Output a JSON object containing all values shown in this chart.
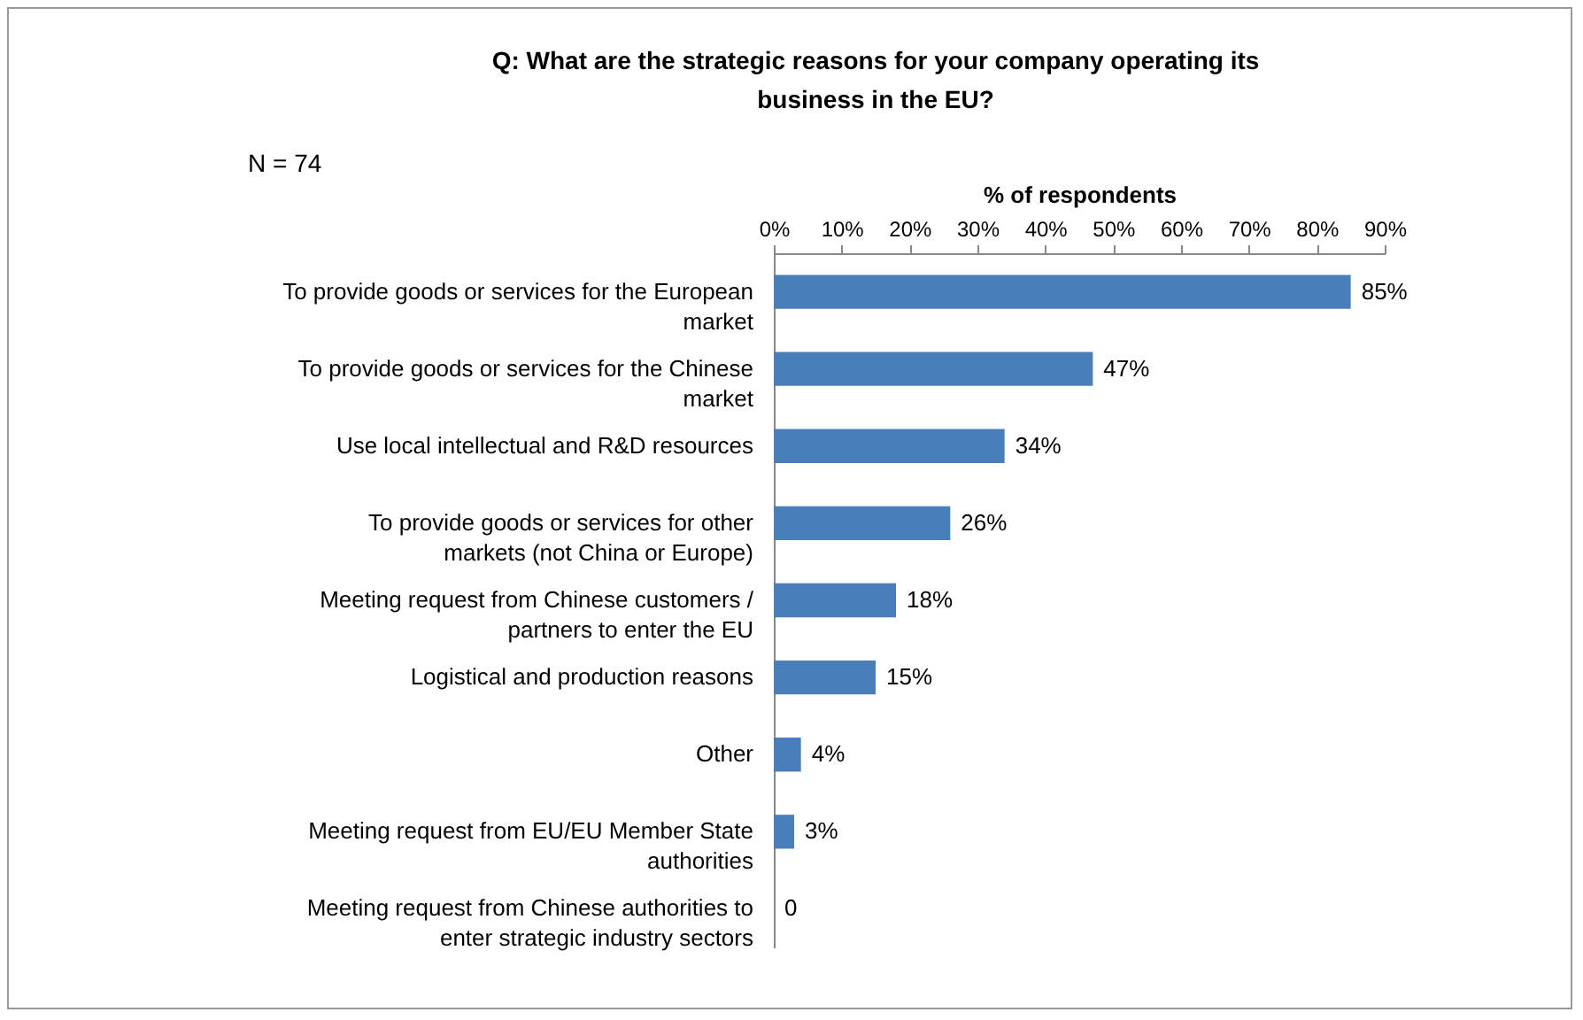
{
  "chart_data": {
    "type": "bar",
    "orientation": "horizontal",
    "title": "Q: What are the strategic reasons for your company operating its business in the EU?",
    "annotations": [
      "N = 74"
    ],
    "xlabel": "% of respondents",
    "categories": [
      "To provide goods or services for the European market",
      "To provide goods or services for the Chinese market",
      "Use local intellectual and R&D resources",
      "To provide goods or services for other markets (not China or Europe)",
      "Meeting request from Chinese customers / partners to enter the EU",
      "Logistical and production reasons",
      "Other",
      "Meeting request from EU/EU Member State authorities",
      "Meeting request from Chinese authorities to enter strategic industry sectors"
    ],
    "values": [
      85,
      47,
      34,
      26,
      18,
      15,
      4,
      3,
      0
    ],
    "value_labels": [
      "85%",
      "47%",
      "34%",
      "26%",
      "18%",
      "15%",
      "4%",
      "3%",
      "0"
    ],
    "color": "#4a7ebb",
    "xlim": [
      0,
      90
    ],
    "xticks": [
      {
        "value": 0,
        "label": "0%"
      },
      {
        "value": 10,
        "label": "10%"
      },
      {
        "value": 20,
        "label": "20%"
      },
      {
        "value": 30,
        "label": "30%"
      },
      {
        "value": 40,
        "label": "40%"
      },
      {
        "value": 50,
        "label": "50%"
      },
      {
        "value": 60,
        "label": "60%"
      },
      {
        "value": 70,
        "label": "70%"
      },
      {
        "value": 80,
        "label": "80%"
      },
      {
        "value": 90,
        "label": "90%"
      }
    ],
    "grid": false
  }
}
